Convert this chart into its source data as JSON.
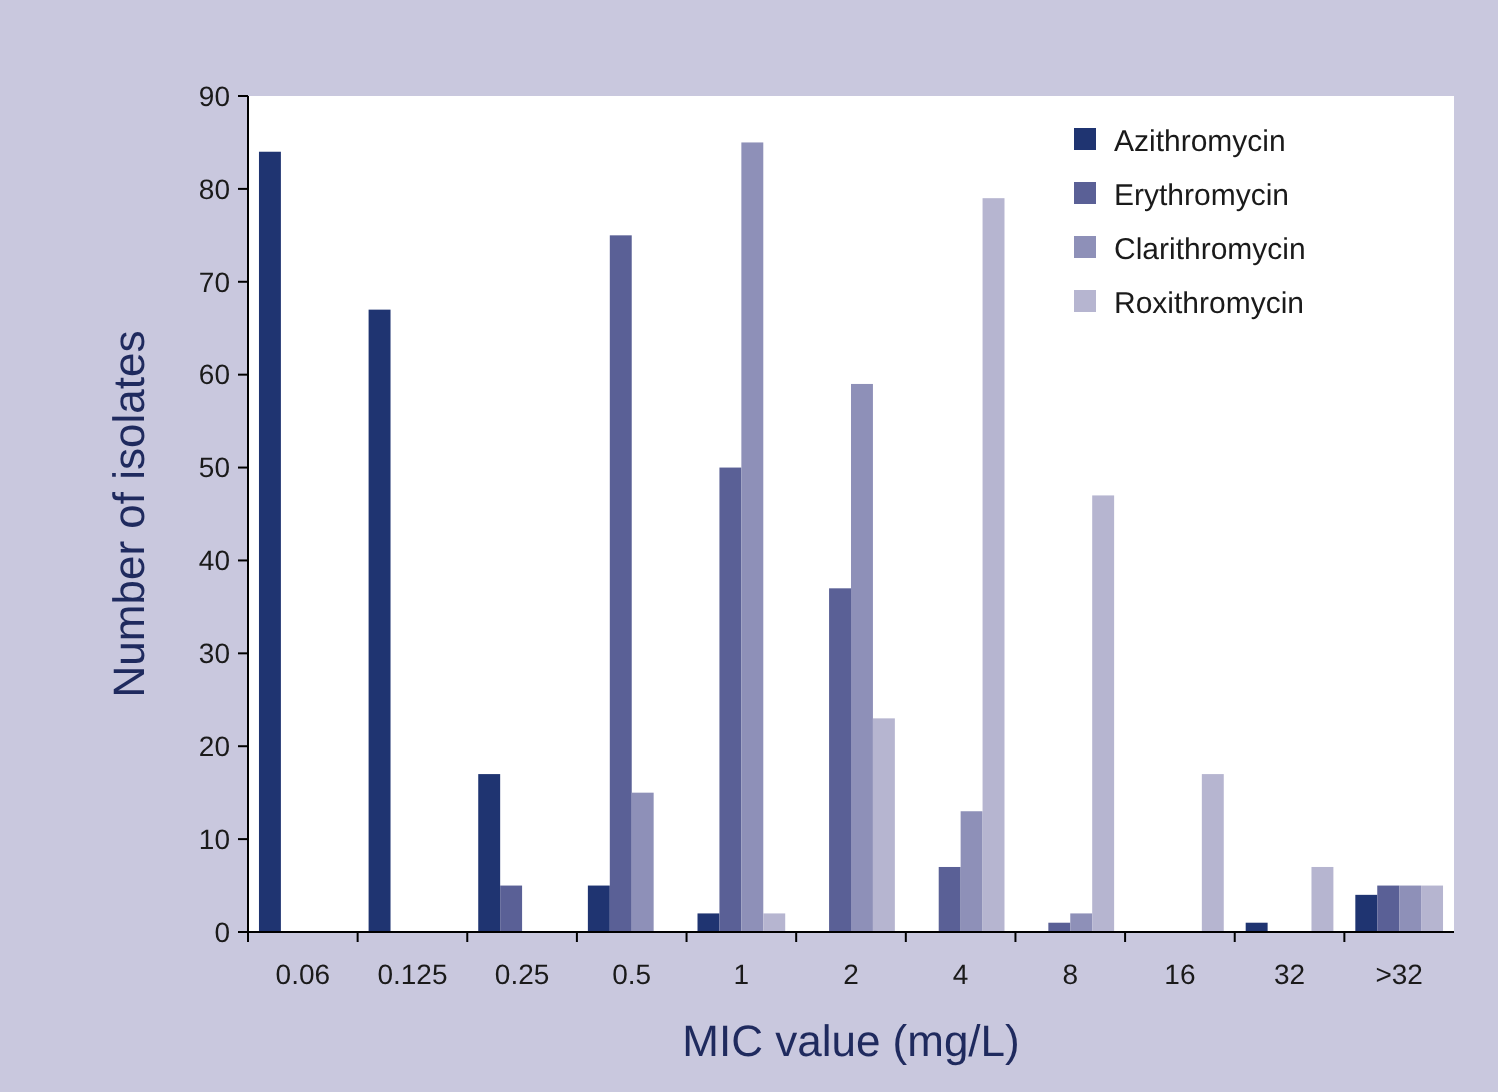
{
  "chart_data": {
    "type": "bar",
    "xlabel": "MIC value (mg/L)",
    "ylabel": "Number of isolates",
    "categories": [
      "0.06",
      "0.125",
      "0.25",
      "0.5",
      "1",
      "2",
      "4",
      "8",
      "16",
      "32",
      ">32"
    ],
    "series": [
      {
        "name": "Azithromycin",
        "color": "#1f3471",
        "values": [
          84,
          67,
          17,
          5,
          2,
          0,
          0,
          0,
          0,
          1,
          4
        ]
      },
      {
        "name": "Erythromycin",
        "color": "#5a6096",
        "values": [
          0,
          0,
          5,
          75,
          50,
          37,
          7,
          1,
          0,
          0,
          5
        ]
      },
      {
        "name": "Clarithromycin",
        "color": "#8e90b8",
        "values": [
          0,
          0,
          0,
          15,
          85,
          59,
          13,
          2,
          0,
          0,
          5
        ]
      },
      {
        "name": "Roxithromycin",
        "color": "#b6b5d0",
        "values": [
          0,
          0,
          0,
          0,
          2,
          23,
          79,
          47,
          17,
          7,
          5
        ]
      }
    ],
    "ylim": [
      0,
      90
    ],
    "yticks": [
      0,
      10,
      20,
      30,
      40,
      50,
      60,
      70,
      80,
      90
    ],
    "grid": false,
    "legend": "top right"
  }
}
